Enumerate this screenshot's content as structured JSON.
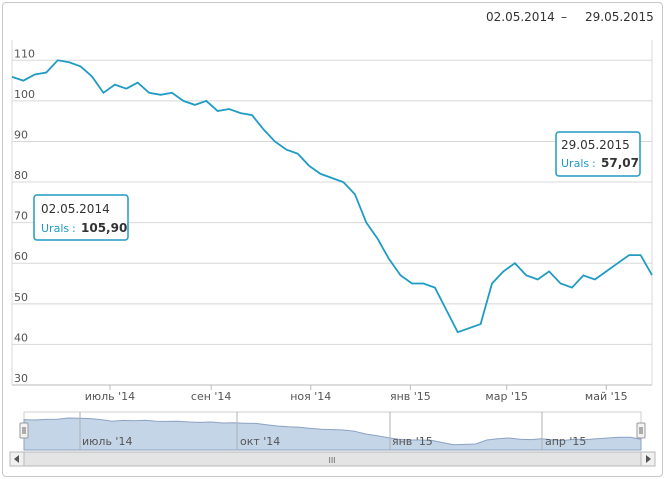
{
  "range": {
    "from": "02.05.2014",
    "sep": "–",
    "to": "29.05.2015"
  },
  "tooltips": {
    "start": {
      "date": "02.05.2014",
      "series": "Urals",
      "sep": ":",
      "value": "105,90"
    },
    "end": {
      "date": "29.05.2015",
      "series": "Urals",
      "sep": ":",
      "value": "57,07"
    }
  },
  "navigator": {
    "labels": [
      "июль '14",
      "окт '14",
      "янв '15",
      "апр '15"
    ],
    "scroll_grip": "III"
  },
  "chart_data": {
    "type": "line",
    "series": [
      {
        "name": "Urals",
        "x": [
          "2014-05-02",
          "2014-05-09",
          "2014-05-16",
          "2014-05-23",
          "2014-05-30",
          "2014-06-06",
          "2014-06-13",
          "2014-06-20",
          "2014-06-27",
          "2014-07-04",
          "2014-07-11",
          "2014-07-18",
          "2014-07-25",
          "2014-08-01",
          "2014-08-08",
          "2014-08-15",
          "2014-08-22",
          "2014-08-29",
          "2014-09-05",
          "2014-09-12",
          "2014-09-19",
          "2014-09-26",
          "2014-10-03",
          "2014-10-10",
          "2014-10-17",
          "2014-10-24",
          "2014-10-31",
          "2014-11-07",
          "2014-11-14",
          "2014-11-21",
          "2014-11-28",
          "2014-12-05",
          "2014-12-12",
          "2014-12-19",
          "2014-12-26",
          "2015-01-02",
          "2015-01-09",
          "2015-01-16",
          "2015-01-23",
          "2015-01-30",
          "2015-02-06",
          "2015-02-13",
          "2015-02-20",
          "2015-02-27",
          "2015-03-06",
          "2015-03-13",
          "2015-03-20",
          "2015-03-27",
          "2015-04-03",
          "2015-04-10",
          "2015-04-17",
          "2015-04-24",
          "2015-05-01",
          "2015-05-08",
          "2015-05-15",
          "2015-05-22",
          "2015-05-29"
        ],
        "values": [
          105.9,
          105,
          106.5,
          107,
          110,
          109.5,
          108.5,
          106,
          102,
          104,
          103,
          104.5,
          102,
          101.5,
          102,
          100,
          99,
          100,
          97.5,
          98,
          97,
          96.5,
          93,
          90,
          88,
          87,
          84,
          82,
          81,
          80,
          77,
          70,
          66,
          61,
          57,
          55,
          55,
          54,
          48.5,
          43,
          44,
          45,
          55,
          58,
          60,
          57,
          56,
          58,
          55,
          54,
          57,
          56,
          58,
          60,
          62,
          62,
          57.07
        ]
      }
    ],
    "ylim": [
      30,
      115
    ],
    "y_ticks": [
      30,
      40,
      50,
      60,
      70,
      80,
      90,
      100,
      110
    ],
    "x_ticks": [
      {
        "label": "июль '14",
        "date": "2014-07-01"
      },
      {
        "label": "сен '14",
        "date": "2014-09-01"
      },
      {
        "label": "ноя '14",
        "date": "2014-11-01"
      },
      {
        "label": "янв '15",
        "date": "2015-01-01"
      },
      {
        "label": "мар '15",
        "date": "2015-03-01"
      },
      {
        "label": "май '15",
        "date": "2015-05-01"
      }
    ],
    "grid": true,
    "colors": {
      "line": "#1f9bc4",
      "grid": "#d8d8d8",
      "nav_fill": "#c5d5e8",
      "nav_line": "#8aa2c3"
    }
  }
}
